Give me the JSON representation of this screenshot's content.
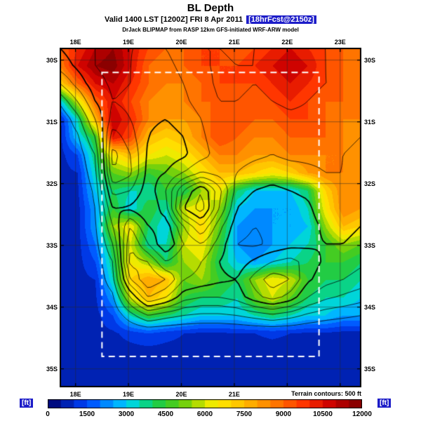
{
  "header": {
    "title": "BL Depth",
    "valid_prefix": "Valid 1400 LST [1200Z] FRI 8 Apr 2011",
    "forecast_tag": "[18hrFcst@2150z]",
    "model_line": "DrJack BLIPMAP from RASP 12km GFS-initiated WRF-ARW model"
  },
  "footer": {
    "terrain_note": "Terrain contours: 500 ft"
  },
  "map": {
    "lon_min": 17.7,
    "lon_max": 23.4,
    "lat_min": 29.8,
    "lat_max": 35.3,
    "grid_lons": [
      18,
      19,
      20,
      21,
      22,
      23
    ],
    "grid_lats": [
      30,
      31,
      32,
      33,
      34,
      35
    ],
    "top_labels": [
      "18E",
      "19E",
      "20E",
      "21E",
      "22E",
      "23E"
    ],
    "bottom_labels": [
      "18E",
      "19E",
      "20E",
      "21E"
    ],
    "left_labels": [
      "30S",
      "31S",
      "32S",
      "33S",
      "34S",
      "35S"
    ],
    "right_labels": [
      "30S",
      "31S",
      "32S",
      "33S",
      "34S",
      "35S"
    ],
    "inner_box": {
      "lon1": 18.5,
      "lon2": 22.6,
      "lat1": 30.2,
      "lat2": 34.8
    }
  },
  "colorbar": {
    "unit": "[ft]",
    "min": 0,
    "max": 12000,
    "ticks": [
      0,
      1500,
      3000,
      4500,
      6000,
      7500,
      9000,
      10500,
      12000
    ],
    "stops": [
      [
        0,
        "#000066"
      ],
      [
        1500,
        "#0044ff"
      ],
      [
        2800,
        "#00bbff"
      ],
      [
        3400,
        "#00ddcc"
      ],
      [
        4000,
        "#11cc55"
      ],
      [
        5000,
        "#55cc11"
      ],
      [
        5800,
        "#bbdd00"
      ],
      [
        6400,
        "#ffee00"
      ],
      [
        7500,
        "#ffbb00"
      ],
      [
        8700,
        "#ff7700"
      ],
      [
        9800,
        "#ff3300"
      ],
      [
        10800,
        "#cc0000"
      ],
      [
        12000,
        "#7a0000"
      ]
    ]
  },
  "chart_data": {
    "type": "heatmap",
    "title": "BL Depth",
    "units": "ft",
    "value_range": [
      0,
      12000
    ],
    "fill_interval_ft": 500,
    "contour_interval_ft": 500,
    "lon_range": [
      17.7,
      23.4
    ],
    "lat_range": [
      29.8,
      35.3
    ],
    "bl_depth_grid": [
      [
        9000,
        10000,
        11000,
        11500,
        10500,
        9500,
        9000,
        9000,
        9500,
        9500,
        9000,
        9500,
        10000,
        10500,
        10000,
        9500,
        9000,
        9000
      ],
      [
        8500,
        10500,
        11500,
        11800,
        10500,
        9000,
        8500,
        9000,
        9500,
        9500,
        9500,
        10000,
        10500,
        11000,
        10500,
        9500,
        9000,
        8500
      ],
      [
        7000,
        9000,
        10500,
        11000,
        10000,
        9000,
        8500,
        8500,
        9000,
        9500,
        9500,
        9500,
        10000,
        10500,
        10000,
        9500,
        9000,
        8500
      ],
      [
        3000,
        6000,
        9000,
        10500,
        9500,
        8500,
        8000,
        8500,
        9000,
        9000,
        9000,
        9000,
        9500,
        10000,
        9500,
        9000,
        9000,
        8500
      ],
      [
        800,
        3500,
        7500,
        11000,
        10000,
        8500,
        8000,
        8000,
        8500,
        9500,
        9500,
        9000,
        9000,
        9500,
        9500,
        9000,
        8500,
        8500
      ],
      [
        800,
        3000,
        4500,
        10500,
        9500,
        7500,
        7000,
        7500,
        8500,
        9500,
        9000,
        8500,
        8500,
        9000,
        9000,
        9000,
        8500,
        8000
      ],
      [
        800,
        1500,
        4000,
        6500,
        7500,
        6500,
        6000,
        6500,
        7500,
        8500,
        8500,
        8000,
        8000,
        8500,
        8500,
        8500,
        8500,
        8000
      ],
      [
        800,
        1000,
        3500,
        5000,
        5500,
        4500,
        5000,
        5500,
        6500,
        7500,
        7500,
        7000,
        6500,
        7000,
        8000,
        8500,
        8500,
        8000
      ],
      [
        800,
        900,
        3000,
        4000,
        3500,
        3500,
        4500,
        4000,
        5500,
        6500,
        4000,
        3000,
        3000,
        3000,
        4000,
        7000,
        8500,
        8500
      ],
      [
        800,
        800,
        2500,
        4500,
        3000,
        4500,
        3500,
        6000,
        6500,
        5500,
        3000,
        2500,
        2500,
        2500,
        3500,
        6500,
        8500,
        8000
      ],
      [
        800,
        800,
        2500,
        5500,
        6500,
        4000,
        3000,
        5500,
        7000,
        5000,
        2500,
        2000,
        2500,
        2500,
        3000,
        5500,
        7500,
        7000
      ],
      [
        800,
        800,
        2000,
        4500,
        6000,
        3500,
        3500,
        6000,
        6500,
        4500,
        2500,
        2000,
        2500,
        3000,
        3500,
        4500,
        5500,
        5000
      ],
      [
        800,
        800,
        1500,
        4000,
        6500,
        5500,
        4000,
        5500,
        6000,
        4000,
        3000,
        2500,
        3000,
        3500,
        4000,
        4500,
        4500,
        4000
      ],
      [
        800,
        800,
        1000,
        3500,
        7000,
        8000,
        7500,
        5000,
        5500,
        4500,
        4000,
        5500,
        6500,
        6000,
        4500,
        4000,
        4000,
        3500
      ],
      [
        800,
        800,
        900,
        2500,
        6000,
        7500,
        6500,
        4500,
        4000,
        4000,
        3500,
        5000,
        6000,
        5000,
        4000,
        3500,
        3500,
        3000
      ],
      [
        800,
        800,
        800,
        1500,
        3500,
        4500,
        4000,
        3500,
        3000,
        3000,
        3000,
        3500,
        4000,
        3500,
        3000,
        3000,
        2500,
        2500
      ],
      [
        800,
        800,
        800,
        900,
        1200,
        1500,
        1200,
        1000,
        900,
        900,
        1000,
        1000,
        1100,
        1000,
        900,
        900,
        800,
        800
      ],
      [
        800,
        800,
        800,
        800,
        800,
        800,
        800,
        800,
        800,
        800,
        800,
        800,
        800,
        800,
        800,
        800,
        800,
        800
      ],
      [
        800,
        800,
        800,
        800,
        800,
        800,
        800,
        800,
        800,
        800,
        800,
        800,
        800,
        800,
        800,
        800,
        800,
        800
      ],
      [
        800,
        800,
        800,
        800,
        800,
        800,
        800,
        800,
        800,
        800,
        800,
        800,
        800,
        800,
        800,
        800,
        800,
        800
      ]
    ],
    "terrain_grid": [
      [
        2500,
        2800,
        3000,
        3200,
        3000,
        3000,
        3000,
        3200,
        3500,
        3500,
        3400,
        3500,
        3600,
        3800,
        3600,
        3500,
        3400,
        3300
      ],
      [
        2200,
        2600,
        3000,
        3200,
        3000,
        2900,
        2900,
        3100,
        3400,
        3600,
        3500,
        3500,
        3700,
        3900,
        3700,
        3500,
        3400,
        3200
      ],
      [
        1500,
        2200,
        2800,
        3100,
        3000,
        2800,
        2800,
        3000,
        3300,
        3600,
        3600,
        3500,
        3600,
        3800,
        3600,
        3500,
        3500,
        3300
      ],
      [
        600,
        1500,
        2500,
        3000,
        2900,
        2700,
        2700,
        2900,
        3200,
        3500,
        3500,
        3400,
        3500,
        3600,
        3500,
        3400,
        3400,
        3200
      ],
      [
        0,
        800,
        2000,
        3200,
        3000,
        2600,
        2500,
        2700,
        3000,
        3400,
        3400,
        3300,
        3300,
        3400,
        3400,
        3300,
        3300,
        3100
      ],
      [
        0,
        400,
        1500,
        3800,
        3200,
        2500,
        2300,
        2500,
        2900,
        3300,
        3300,
        3200,
        3100,
        3200,
        3200,
        3200,
        3100,
        3000
      ],
      [
        0,
        200,
        1000,
        4200,
        3500,
        2400,
        2200,
        2400,
        2800,
        3200,
        3200,
        3100,
        3000,
        3100,
        3100,
        3100,
        3000,
        2900
      ],
      [
        0,
        100,
        800,
        4000,
        3600,
        2300,
        2500,
        3000,
        3500,
        3300,
        3000,
        2800,
        2700,
        2800,
        2900,
        3000,
        3000,
        2800
      ],
      [
        0,
        0,
        600,
        3200,
        3000,
        2200,
        3000,
        4500,
        5500,
        4200,
        2800,
        2500,
        2400,
        2500,
        2600,
        2900,
        3000,
        2800
      ],
      [
        0,
        0,
        500,
        2500,
        2400,
        2000,
        2800,
        5000,
        5800,
        4000,
        2500,
        2200,
        2200,
        2300,
        2400,
        2800,
        2900,
        2700
      ],
      [
        0,
        0,
        400,
        2000,
        3500,
        2500,
        2200,
        3500,
        4500,
        3200,
        2200,
        2000,
        2100,
        2200,
        2300,
        2600,
        2700,
        2500
      ],
      [
        0,
        0,
        300,
        1500,
        4000,
        3000,
        2000,
        3000,
        3500,
        2800,
        2000,
        1900,
        2100,
        2300,
        2400,
        2500,
        2500,
        2300
      ],
      [
        0,
        0,
        200,
        1000,
        4200,
        4000,
        3000,
        3500,
        3000,
        2500,
        2200,
        2600,
        3000,
        3200,
        2800,
        2400,
        2300,
        2100
      ],
      [
        0,
        0,
        100,
        800,
        3500,
        4500,
        4000,
        3000,
        2800,
        2600,
        2500,
        3200,
        3800,
        3500,
        2600,
        2200,
        2000,
        1800
      ],
      [
        0,
        0,
        0,
        400,
        2000,
        3500,
        3000,
        2200,
        2000,
        2000,
        2200,
        2800,
        3200,
        2800,
        2000,
        1600,
        1400,
        1200
      ],
      [
        0,
        0,
        0,
        100,
        800,
        1500,
        1200,
        1000,
        900,
        900,
        1000,
        1200,
        1400,
        1200,
        900,
        700,
        600,
        500
      ],
      [
        0,
        0,
        0,
        0,
        0,
        0,
        0,
        0,
        0,
        0,
        0,
        0,
        0,
        0,
        0,
        0,
        0,
        0
      ],
      [
        0,
        0,
        0,
        0,
        0,
        0,
        0,
        0,
        0,
        0,
        0,
        0,
        0,
        0,
        0,
        0,
        0,
        0
      ],
      [
        0,
        0,
        0,
        0,
        0,
        0,
        0,
        0,
        0,
        0,
        0,
        0,
        0,
        0,
        0,
        0,
        0,
        0
      ],
      [
        0,
        0,
        0,
        0,
        0,
        0,
        0,
        0,
        0,
        0,
        0,
        0,
        0,
        0,
        0,
        0,
        0,
        0
      ]
    ]
  }
}
